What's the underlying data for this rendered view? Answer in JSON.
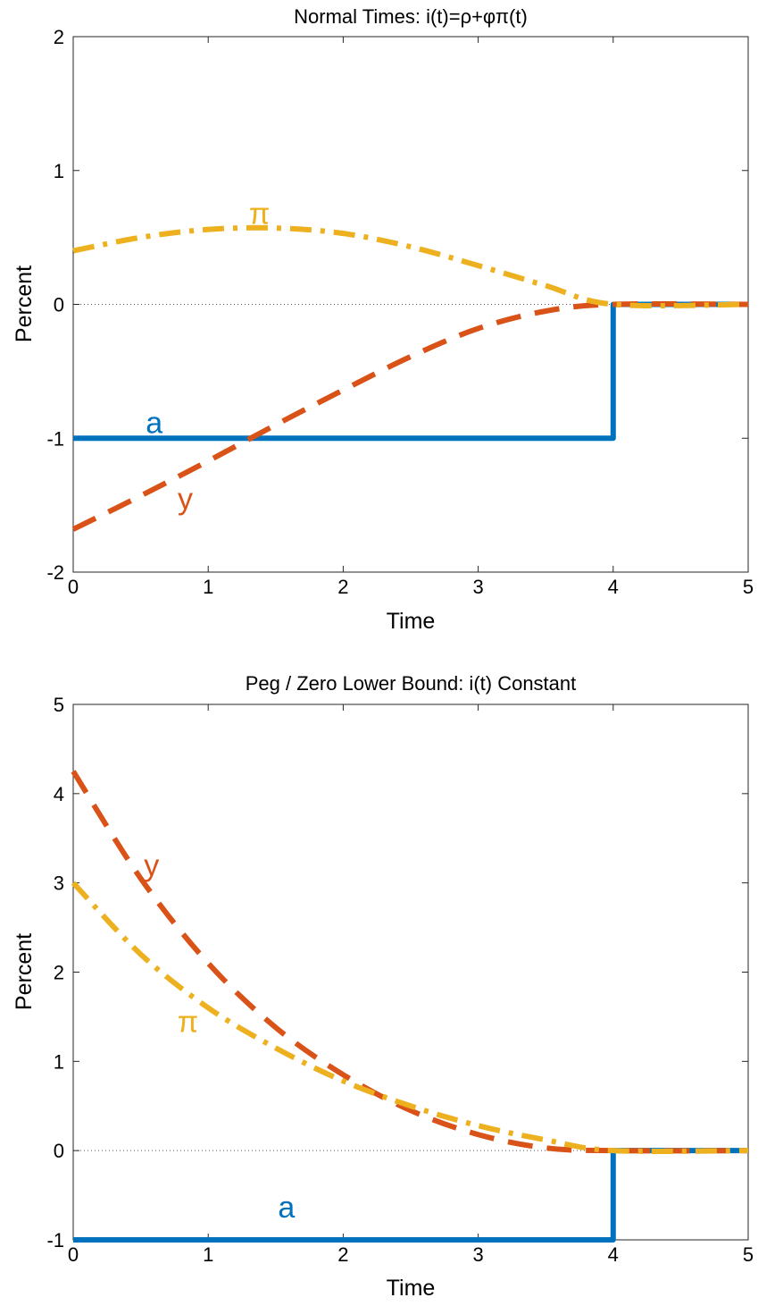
{
  "chart_data": [
    {
      "type": "line",
      "title": "Normal Times: i(t)=ρ+φπ(t)",
      "xlabel": "Time",
      "ylabel": "Percent",
      "xlim": [
        0,
        5
      ],
      "ylim": [
        -2,
        2
      ],
      "xticks": [
        0,
        1,
        2,
        3,
        4,
        5
      ],
      "yticks": [
        -2,
        -1,
        0,
        1,
        2
      ],
      "xtick_labels": [
        "0",
        "1",
        "2",
        "3",
        "4",
        "5"
      ],
      "ytick_labels": [
        "-2",
        "-1",
        "0",
        "1",
        "2"
      ],
      "grid": false,
      "zero_line": true,
      "series": [
        {
          "name": "a",
          "color": "#0072BD",
          "style": "solid",
          "x": [
            0,
            4,
            4,
            5
          ],
          "y": [
            -1,
            -1,
            0,
            0
          ],
          "label_at": [
            0.6,
            -0.88
          ]
        },
        {
          "name": "y",
          "color": "#D95319",
          "style": "dashed",
          "x": [
            0,
            0.5,
            1,
            1.5,
            2,
            2.5,
            3,
            3.5,
            4,
            5
          ],
          "y": [
            -1.68,
            -1.43,
            -1.17,
            -0.9,
            -0.64,
            -0.39,
            -0.18,
            -0.05,
            0,
            0
          ],
          "label_at": [
            0.83,
            -1.45
          ]
        },
        {
          "name": "π",
          "color": "#EDB120",
          "style": "dashdot",
          "x": [
            0,
            0.5,
            1,
            1.5,
            2,
            2.5,
            3,
            3.5,
            4,
            5
          ],
          "y": [
            0.4,
            0.5,
            0.56,
            0.57,
            0.53,
            0.43,
            0.29,
            0.14,
            0,
            0
          ],
          "label_at": [
            1.38,
            0.68
          ]
        }
      ]
    },
    {
      "type": "line",
      "title": "Peg / Zero Lower Bound: i(t) Constant",
      "xlabel": "Time",
      "ylabel": "Percent",
      "xlim": [
        0,
        5
      ],
      "ylim": [
        -1,
        5
      ],
      "xticks": [
        0,
        1,
        2,
        3,
        4,
        5
      ],
      "yticks": [
        -1,
        0,
        1,
        2,
        3,
        4,
        5
      ],
      "xtick_labels": [
        "0",
        "1",
        "2",
        "3",
        "4",
        "5"
      ],
      "ytick_labels": [
        "-1",
        "0",
        "1",
        "2",
        "3",
        "4",
        "5"
      ],
      "grid": false,
      "zero_line": true,
      "series": [
        {
          "name": "a",
          "color": "#0072BD",
          "style": "solid",
          "x": [
            0,
            4,
            4,
            5
          ],
          "y": [
            -1,
            -1,
            0,
            0
          ],
          "label_at": [
            1.58,
            -0.63
          ]
        },
        {
          "name": "y",
          "color": "#D95319",
          "style": "dashed",
          "x": [
            0,
            0.5,
            1,
            1.5,
            2,
            2.5,
            3,
            3.5,
            4,
            5
          ],
          "y": [
            4.25,
            3.05,
            2.1,
            1.38,
            0.85,
            0.45,
            0.18,
            0.03,
            0,
            0
          ],
          "label_at": [
            0.58,
            3.2
          ]
        },
        {
          "name": "π",
          "color": "#EDB120",
          "style": "dashdot",
          "x": [
            0,
            0.5,
            1,
            1.5,
            2,
            2.5,
            3,
            3.5,
            4,
            5
          ],
          "y": [
            3,
            2.2,
            1.6,
            1.15,
            0.78,
            0.5,
            0.28,
            0.12,
            0,
            0
          ],
          "label_at": [
            0.85,
            1.45
          ]
        }
      ]
    }
  ]
}
